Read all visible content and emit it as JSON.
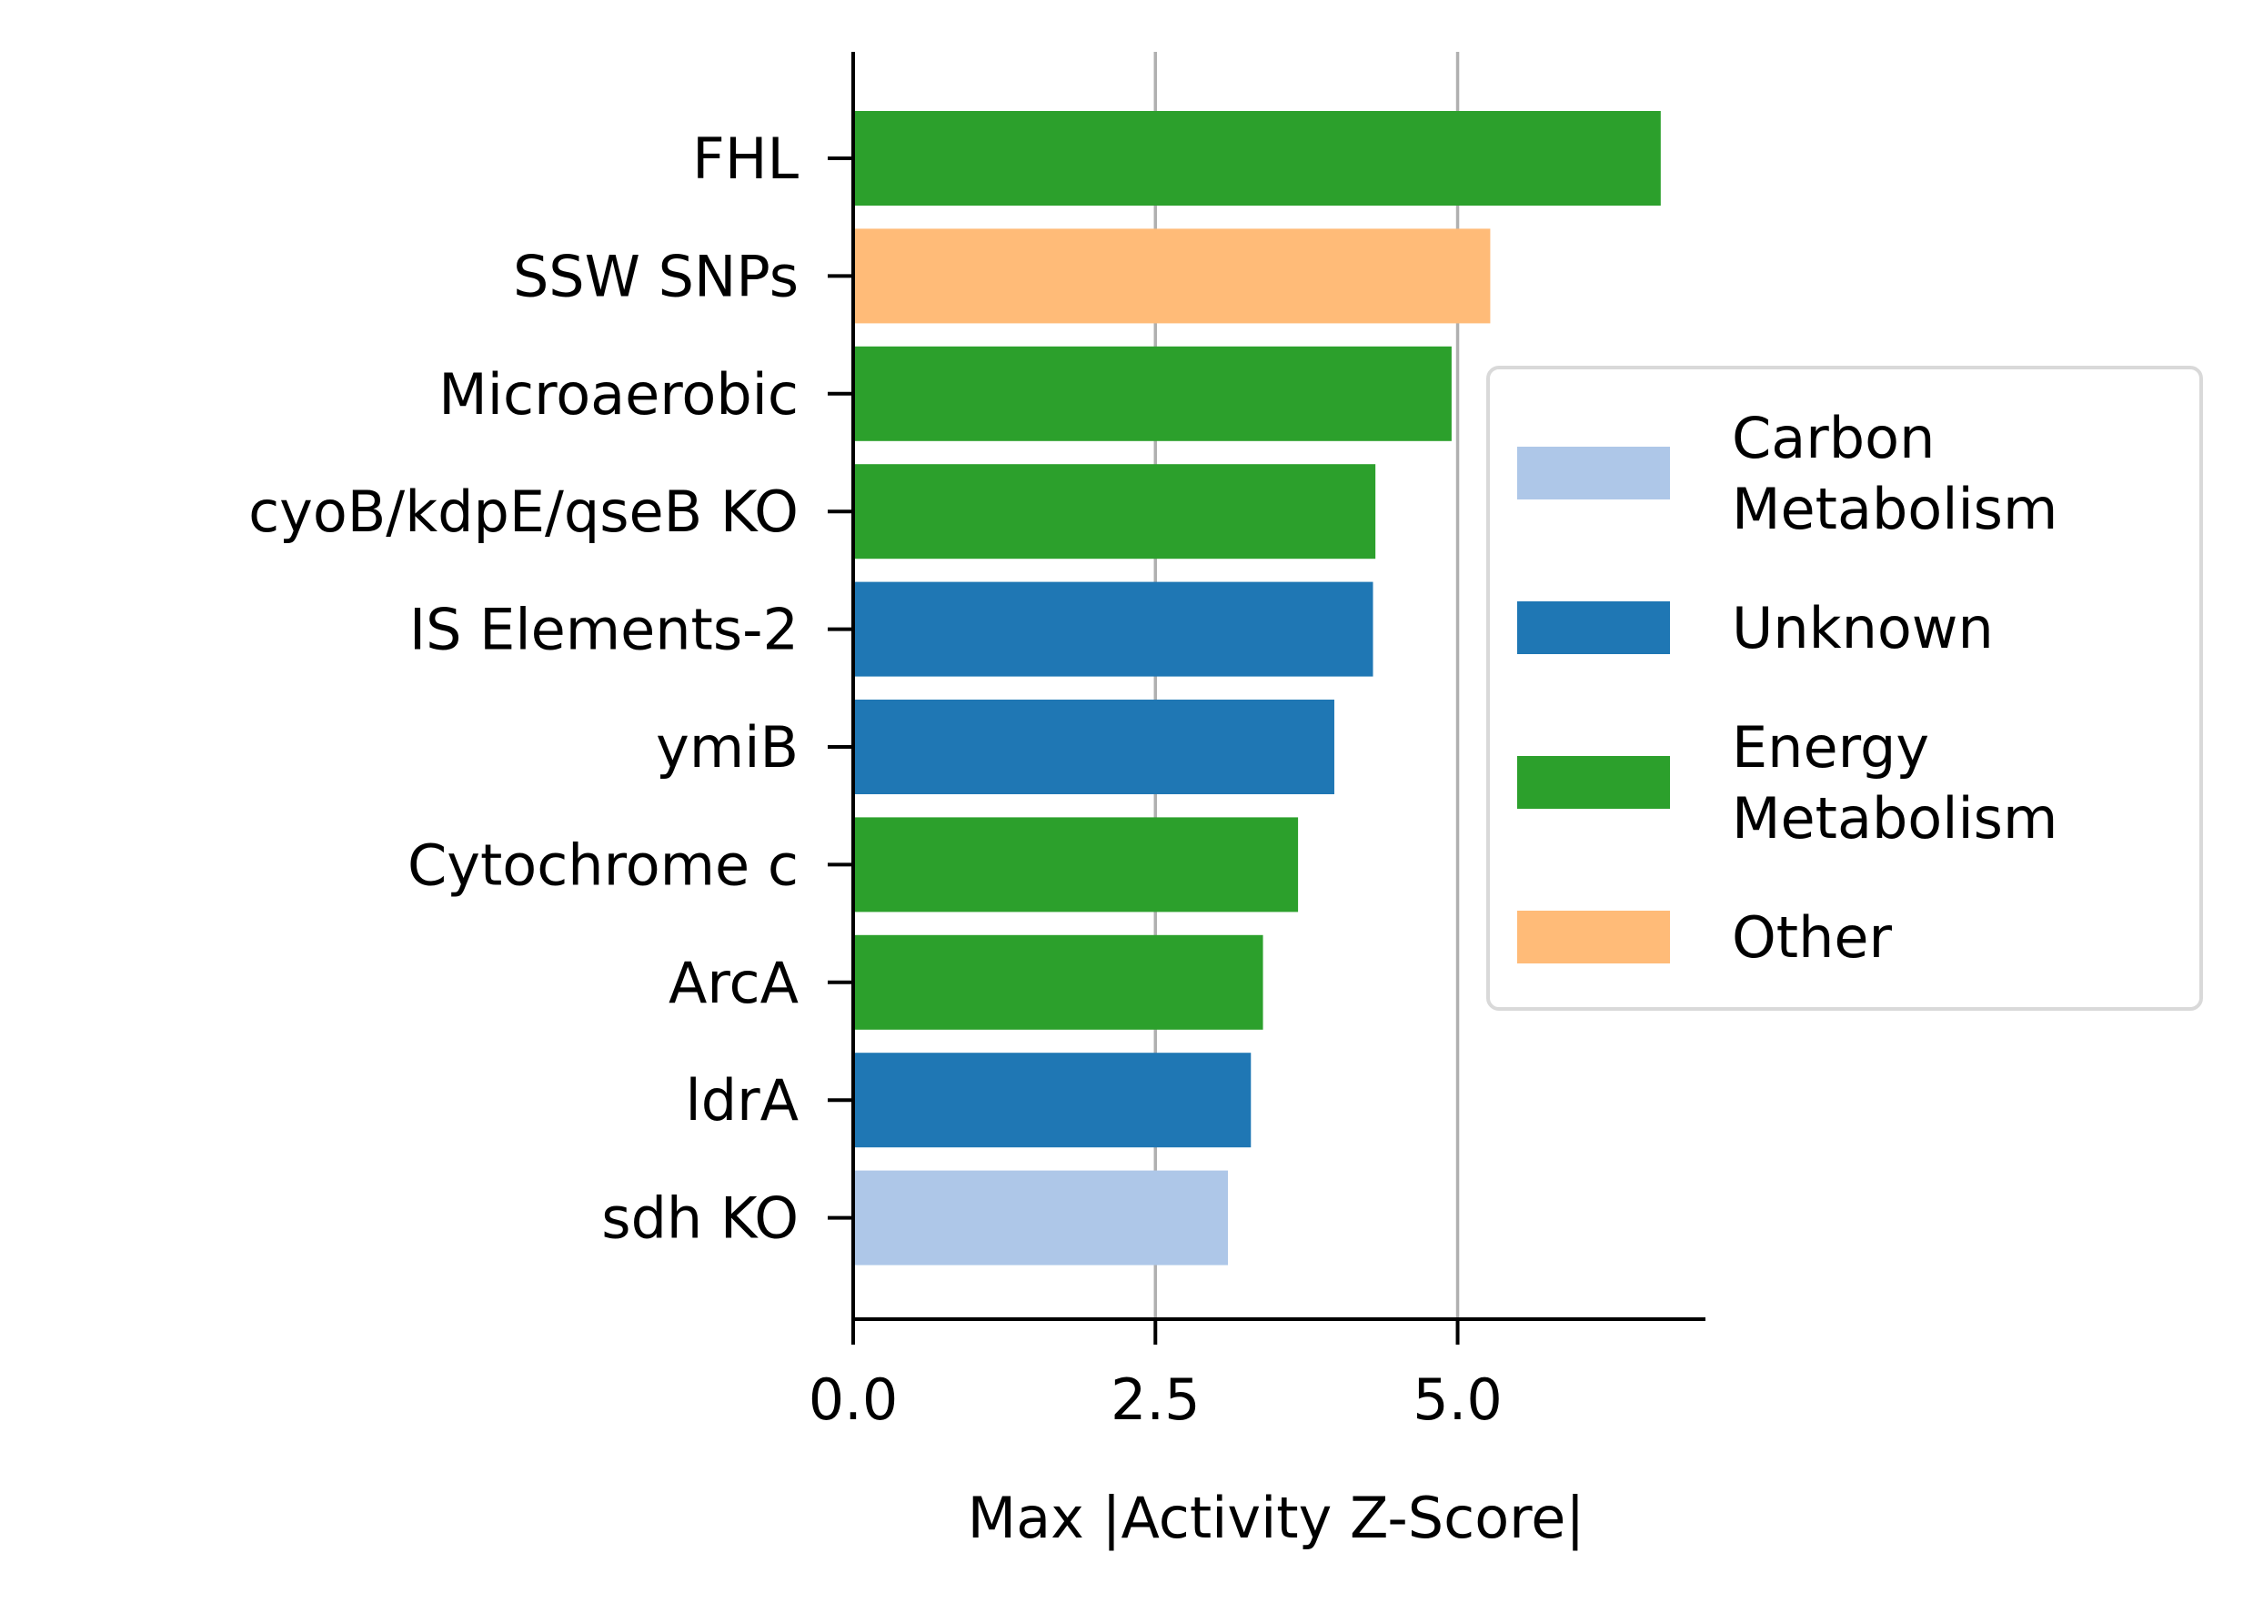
{
  "chart_data": {
    "type": "bar",
    "orientation": "horizontal",
    "title": "",
    "xlabel": "Max |Activity Z-Score|",
    "ylabel": "",
    "xlim": [
      0,
      7.05
    ],
    "xticks": [
      0.0,
      2.5,
      5.0
    ],
    "xtick_labels": [
      "0.0",
      "2.5",
      "5.0"
    ],
    "grid": "vertical lines at x ticks",
    "legend_position": "center-right outside",
    "categories": [
      "FHL",
      "SSW SNPs",
      "Microaerobic",
      "cyoB/kdpE/qseB KO",
      "IS Elements-2",
      "ymiB",
      "Cytochrome c",
      "ArcA",
      "ldrA",
      "sdh KO"
    ],
    "values": [
      6.68,
      5.27,
      4.95,
      4.32,
      4.3,
      3.98,
      3.68,
      3.39,
      3.29,
      3.1
    ],
    "groups": [
      "Energy Metabolism",
      "Other",
      "Energy Metabolism",
      "Energy Metabolism",
      "Unknown",
      "Unknown",
      "Energy Metabolism",
      "Energy Metabolism",
      "Unknown",
      "Carbon Metabolism"
    ],
    "legend": [
      {
        "key": "Carbon Metabolism",
        "lines": [
          "Carbon",
          "Metabolism"
        ],
        "color": "#aec7e8"
      },
      {
        "key": "Unknown",
        "lines": [
          "Unknown"
        ],
        "color": "#1f77b4"
      },
      {
        "key": "Energy Metabolism",
        "lines": [
          "Energy",
          "Metabolism"
        ],
        "color": "#2ca02c"
      },
      {
        "key": "Other",
        "lines": [
          "Other"
        ],
        "color": "#ffbb78"
      }
    ],
    "colors": {
      "grid": "#b0b0b0",
      "axis": "#000000",
      "legend_border": "#d9d9d9"
    }
  }
}
